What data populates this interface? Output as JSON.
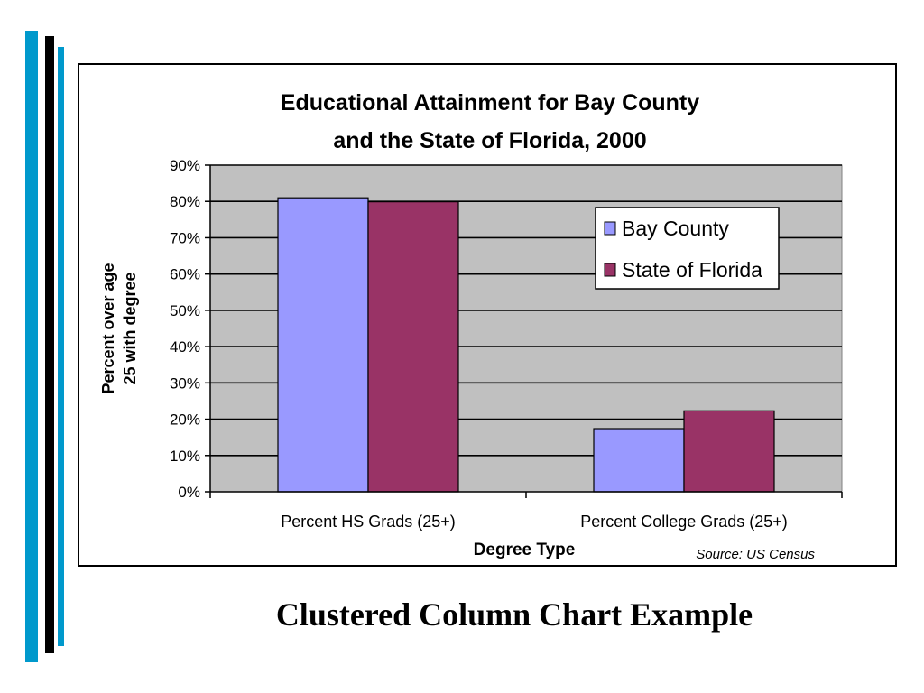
{
  "slide": {
    "caption": "Clustered Column Chart Example",
    "colors": {
      "bar_blue": "#0099cc",
      "bar_black": "#000000",
      "plot_bg": "#c0c0c0"
    }
  },
  "chart_data": {
    "type": "bar",
    "title_line1": "Educational Attainment for Bay County",
    "title_line2": "and the State of Florida, 2000",
    "xlabel": "Degree Type",
    "ylabel_line1": "Percent over age",
    "ylabel_line2": "25 with degree",
    "source": "Source: US Census",
    "categories": [
      "Percent HS Grads (25+)",
      "Percent College Grads (25+)"
    ],
    "series": [
      {
        "name": "Bay County",
        "values": [
          81,
          17.4
        ],
        "color": "#9999ff"
      },
      {
        "name": "State of Florida",
        "values": [
          79.9,
          22.3
        ],
        "color": "#993366"
      }
    ],
    "ylim": [
      0,
      90
    ],
    "ytick_step": 10,
    "ytick_labels": [
      "0%",
      "10%",
      "20%",
      "30%",
      "40%",
      "50%",
      "60%",
      "70%",
      "80%",
      "90%"
    ],
    "grid": true,
    "legend_position": "top-right"
  }
}
